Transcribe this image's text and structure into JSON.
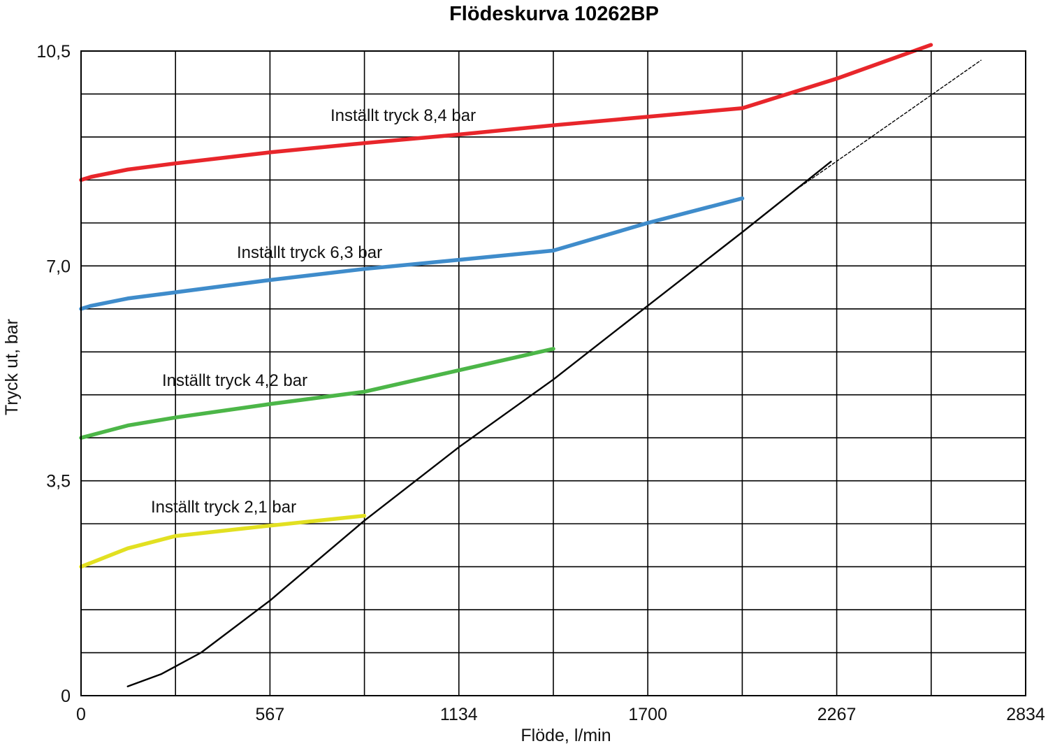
{
  "chart_data": {
    "type": "line",
    "title": "Flödeskurva 10262BP",
    "xlabel": "Flöde, l/min",
    "ylabel": "Tryck ut, bar",
    "xlim": [
      0,
      2834
    ],
    "ylim": [
      0,
      10.5
    ],
    "x_ticks": [
      "0",
      "567",
      "1134",
      "1700",
      "2267",
      "2834"
    ],
    "y_ticks": [
      "0",
      "3,5",
      "7,0",
      "10,5"
    ],
    "grid": true,
    "series": [
      {
        "name": "Inställt tryck 8,4 bar",
        "color": "#e8262b",
        "x": [
          0,
          30,
          140,
          283,
          567,
          850,
          1134,
          1417,
          1700,
          1984,
          2267,
          2550
        ],
        "y": [
          8.4,
          8.45,
          8.57,
          8.67,
          8.85,
          9.0,
          9.14,
          9.29,
          9.43,
          9.57,
          10.05,
          10.6
        ]
      },
      {
        "name": "Inställt tryck 6,3 bar",
        "color": "#3f8ccb",
        "x": [
          0,
          30,
          140,
          283,
          567,
          850,
          1134,
          1417,
          1700,
          1984
        ],
        "y": [
          6.3,
          6.35,
          6.47,
          6.57,
          6.77,
          6.95,
          7.1,
          7.25,
          7.7,
          8.1
        ]
      },
      {
        "name": "Inställt tryck 4,2 bar",
        "color": "#4cb648",
        "x": [
          0,
          140,
          283,
          567,
          850,
          1134,
          1417
        ],
        "y": [
          4.2,
          4.4,
          4.53,
          4.75,
          4.95,
          5.3,
          5.65
        ]
      },
      {
        "name": "Inställt tryck 2,1 bar",
        "color": "#e2e021",
        "x": [
          0,
          140,
          283,
          567,
          850
        ],
        "y": [
          2.1,
          2.4,
          2.6,
          2.77,
          2.93
        ]
      },
      {
        "color": "#000000",
        "x": [
          140,
          240,
          360,
          567,
          850,
          1134,
          1417,
          1700,
          1984,
          2250
        ],
        "y": [
          0.15,
          0.35,
          0.7,
          1.55,
          2.85,
          4.05,
          5.15,
          6.35,
          7.55,
          8.7
        ]
      },
      {
        "color": "#000000",
        "x": [
          2134,
          2700
        ],
        "y": [
          8.2,
          10.35
        ]
      }
    ]
  }
}
